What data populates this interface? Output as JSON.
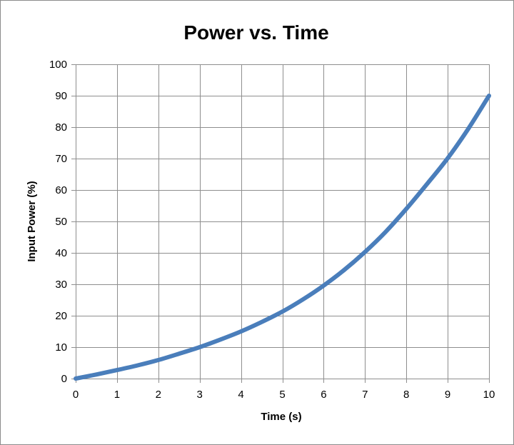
{
  "chart_data": {
    "type": "line",
    "title": "Power vs. Time",
    "xlabel": "Time (s)",
    "ylabel": "Input Power (%)",
    "xlim": [
      0,
      10
    ],
    "ylim": [
      0,
      100
    ],
    "x_ticks": [
      "0",
      "1",
      "2",
      "3",
      "4",
      "5",
      "6",
      "7",
      "8",
      "9",
      "10"
    ],
    "y_ticks": [
      "0",
      "10",
      "20",
      "30",
      "40",
      "50",
      "60",
      "70",
      "80",
      "90",
      "100"
    ],
    "grid": true,
    "legend": "none",
    "series": [
      {
        "color": "#4a7ebb",
        "x": [
          0,
          0.5,
          1,
          1.5,
          2,
          2.5,
          3,
          3.5,
          4,
          4.5,
          5,
          5.5,
          6,
          6.5,
          7,
          7.5,
          8,
          8.5,
          9,
          9.5,
          10
        ],
        "y": [
          0,
          1.3,
          2.7,
          4.2,
          5.9,
          7.9,
          10,
          12.4,
          15,
          18,
          21.3,
          25.2,
          29.6,
          34.6,
          40.3,
          46.7,
          54,
          61.9,
          70.1,
          79.5,
          90
        ]
      }
    ]
  }
}
